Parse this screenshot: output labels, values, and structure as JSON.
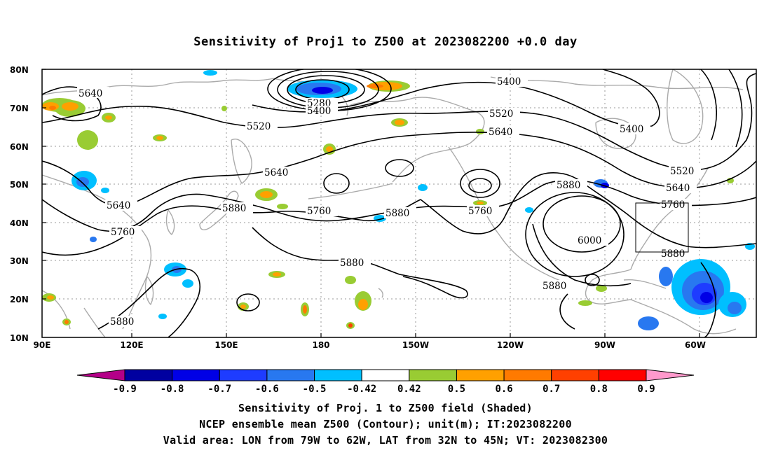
{
  "title": "Sensitivity of Proj1 to Z500 at 2023082200 +0.0 day",
  "lat_ticks": [
    "80N",
    "70N",
    "60N",
    "50N",
    "40N",
    "30N",
    "20N",
    "10N"
  ],
  "lon_ticks": [
    "90E",
    "120E",
    "150E",
    "180",
    "150W",
    "120W",
    "90W",
    "60W"
  ],
  "contour_labels": [
    "5640",
    "5280",
    "5400",
    "5400",
    "5520",
    "5520",
    "5640",
    "5400",
    "5640",
    "5520",
    "5640",
    "5640",
    "5880",
    "5760",
    "5760",
    "5880",
    "5760",
    "5880",
    "5880",
    "6000",
    "5880",
    "5880",
    "5880",
    "5760"
  ],
  "colorbar": {
    "labels": [
      "-0.9",
      "-0.8",
      "-0.7",
      "-0.6",
      "-0.5",
      "-0.42",
      "0.42",
      "0.5",
      "0.6",
      "0.7",
      "0.8",
      "0.9"
    ],
    "colors": [
      "#b40088",
      "#0000a0",
      "#0000e6",
      "#1e3cff",
      "#2878f0",
      "#00bfff",
      "#ffffff",
      "#99cc33",
      "#ffa000",
      "#ff7a00",
      "#ff4000",
      "#ff0000",
      "#ff99cc"
    ]
  },
  "footer": {
    "line1": "Sensitivity of Proj. 1 to Z500 field (Shaded)",
    "line2": "NCEP ensemble mean Z500 (Contour); unit(m); IT:2023082200",
    "line3": "Valid area: LON from 79W to 62W, LAT from 32N to 45N; VT: 2023082300"
  }
}
